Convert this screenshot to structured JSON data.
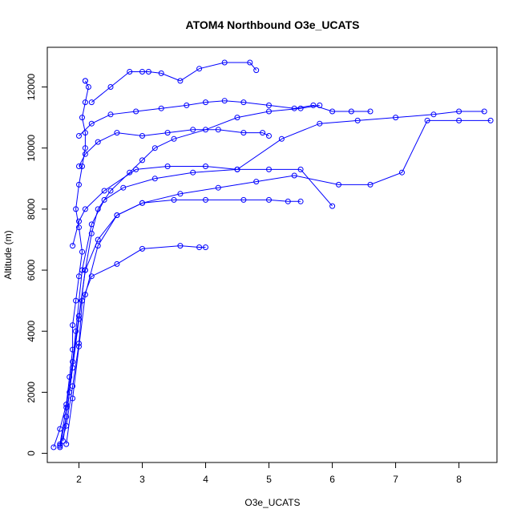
{
  "chart_data": {
    "type": "scatter",
    "title": "ATOM4 Northbound O3e_UCATS",
    "xlabel": "O3e_UCATS",
    "ylabel": "Altitude (m)",
    "xlim": [
      1.5,
      8.6
    ],
    "ylim": [
      -300,
      13300
    ],
    "x_ticks": [
      2,
      3,
      4,
      5,
      6,
      7,
      8
    ],
    "y_ticks": [
      0,
      2000,
      4000,
      6000,
      8000,
      10000,
      12000
    ],
    "grid": false,
    "legend": "none",
    "marker": "open-circle",
    "connected": true,
    "color": "#0000ff",
    "series": [
      {
        "x": [
          1.6,
          1.7,
          1.8,
          1.85,
          1.9,
          1.9,
          1.95,
          2.0,
          2.05,
          2.0,
          1.95,
          2.0,
          2.05,
          2.1,
          2.1,
          2.05,
          2.1,
          2.15,
          2.1,
          2.1
        ],
        "y": [
          200,
          800,
          1600,
          2500,
          3400,
          4200,
          5000,
          5800,
          6600,
          7400,
          8000,
          8800,
          9400,
          10000,
          10500,
          11000,
          11500,
          12000,
          12200,
          12200
        ]
      },
      {
        "x": [
          1.7,
          1.8,
          1.9,
          2.0,
          2.1,
          2.2,
          2.3,
          2.5,
          2.8,
          3.0,
          3.2,
          3.5,
          4.0,
          4.5,
          5.0,
          5.5,
          5.8
        ],
        "y": [
          300,
          1500,
          3000,
          4500,
          6000,
          7200,
          8000,
          8600,
          9200,
          9600,
          10000,
          10300,
          10600,
          11000,
          11200,
          11300,
          11400
        ]
      },
      {
        "x": [
          1.75,
          1.85,
          1.95,
          2.05,
          2.2,
          2.4,
          2.7,
          3.2,
          3.8,
          4.5,
          5.2,
          5.8,
          6.4,
          7.0,
          7.6,
          8.0,
          8.4
        ],
        "y": [
          400,
          2000,
          4000,
          6000,
          7500,
          8300,
          8700,
          9000,
          9200,
          9300,
          10300,
          10800,
          10900,
          11000,
          11100,
          11200,
          11200
        ]
      },
      {
        "x": [
          1.7,
          1.8,
          1.9,
          2.0,
          2.1,
          2.3,
          2.6,
          3.0,
          3.6,
          4.2,
          4.8,
          5.4,
          6.1,
          6.6,
          7.1,
          7.5,
          8.0,
          8.5
        ],
        "y": [
          250,
          1200,
          2800,
          4400,
          6000,
          7000,
          7800,
          8200,
          8500,
          8700,
          8900,
          9100,
          8800,
          8800,
          9200,
          10900,
          10900,
          10900
        ]
      },
      {
        "x": [
          1.7,
          1.8,
          1.9,
          2.0,
          2.05,
          2.2,
          2.6,
          3.0,
          3.6,
          3.9,
          4.0
        ],
        "y": [
          200,
          900,
          2200,
          3600,
          5000,
          5800,
          6200,
          6700,
          6800,
          6750,
          6750
        ]
      },
      {
        "x": [
          1.8,
          1.9,
          2.0,
          2.1,
          2.3,
          2.6,
          3.0,
          3.5,
          4.0,
          4.6,
          5.0,
          5.3,
          5.5
        ],
        "y": [
          300,
          1800,
          3500,
          5200,
          6800,
          7800,
          8200,
          8300,
          8300,
          8300,
          8300,
          8250,
          8250
        ]
      },
      {
        "x": [
          2.2,
          2.5,
          2.8,
          3.0,
          3.1,
          3.3,
          3.6,
          3.9,
          4.3,
          4.7,
          4.8
        ],
        "y": [
          11500,
          12000,
          12500,
          12500,
          12500,
          12450,
          12200,
          12600,
          12800,
          12800,
          12550
        ]
      },
      {
        "x": [
          1.9,
          2.0,
          2.1,
          2.4,
          2.9,
          3.4,
          4.0,
          4.5,
          5.0,
          5.5,
          6.0
        ],
        "y": [
          6800,
          7600,
          8000,
          8600,
          9300,
          9400,
          9400,
          9300,
          9300,
          9300,
          8100
        ]
      },
      {
        "x": [
          2.0,
          2.1,
          2.3,
          2.6,
          3.0,
          3.4,
          3.8,
          4.2,
          4.6,
          4.9,
          5.0
        ],
        "y": [
          9400,
          9800,
          10200,
          10500,
          10400,
          10500,
          10600,
          10600,
          10500,
          10500,
          10400
        ]
      },
      {
        "x": [
          2.0,
          2.2,
          2.5,
          2.9,
          3.3,
          3.7,
          4.0,
          4.3,
          4.6,
          5.0,
          5.4,
          5.7,
          6.0,
          6.3,
          6.6
        ],
        "y": [
          10400,
          10800,
          11100,
          11200,
          11300,
          11400,
          11500,
          11550,
          11500,
          11400,
          11300,
          11400,
          11200,
          11200,
          11200
        ]
      }
    ]
  }
}
